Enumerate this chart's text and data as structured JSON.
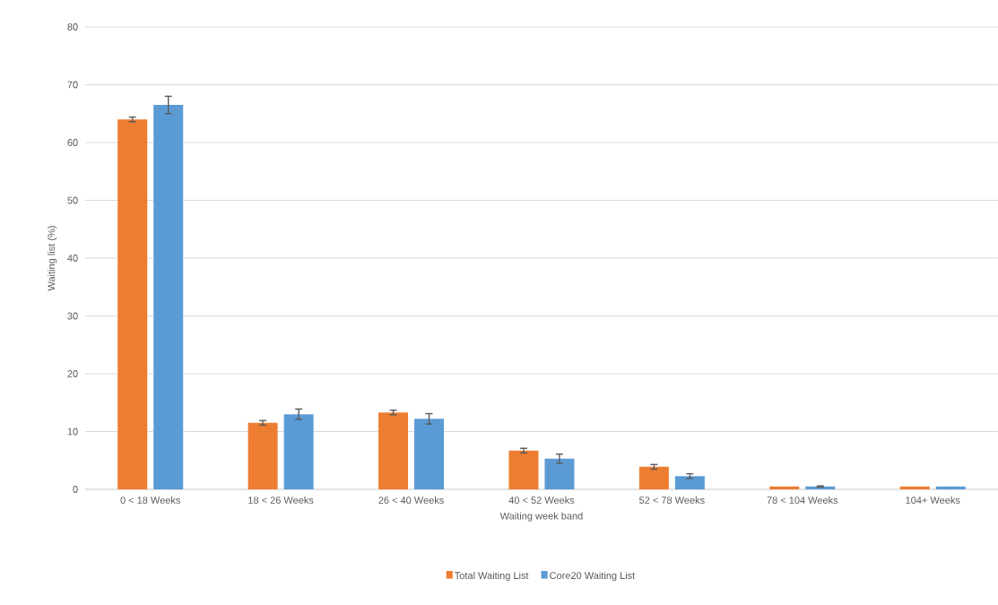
{
  "chart_data": {
    "type": "bar",
    "xlabel": "Waiting week band",
    "ylabel": "Waiting list (%)",
    "categories": [
      "0 < 18 Weeks",
      "18 < 26 Weeks",
      "26 < 40 Weeks",
      "40 < 52 Weeks",
      "52 < 78 Weeks",
      "78 < 104 Weeks",
      "104+ Weeks"
    ],
    "series": [
      {
        "name": "Total Waiting List",
        "color": "#ed7d31",
        "values": [
          64.0,
          11.5,
          13.3,
          6.7,
          3.9,
          0.5,
          0.5
        ],
        "errors": [
          0.4,
          0.4,
          0.4,
          0.4,
          0.4,
          null,
          null
        ]
      },
      {
        "name": "Core20 Waiting List",
        "color": "#5b9bd5",
        "values": [
          66.5,
          13.0,
          12.2,
          5.3,
          2.3,
          0.5,
          0.5
        ],
        "errors": [
          1.5,
          0.9,
          0.9,
          0.8,
          0.4,
          0.1,
          null
        ]
      }
    ],
    "ylim": [
      0,
      80
    ],
    "yticks": [
      0,
      10,
      20,
      30,
      40,
      50,
      60,
      70,
      80
    ],
    "grid": "y",
    "legend": "bottom"
  }
}
